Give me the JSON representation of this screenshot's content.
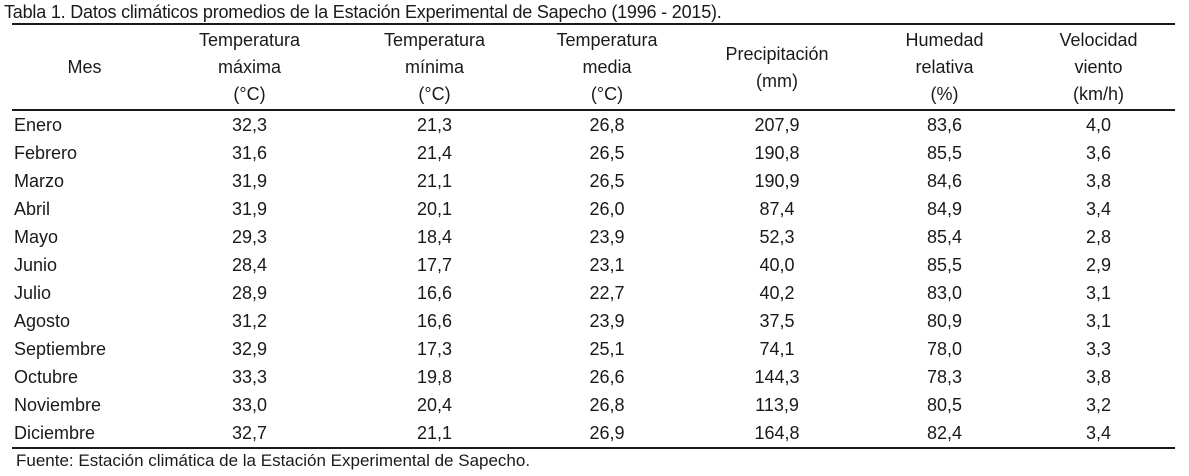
{
  "caption": "Tabla 1. Datos climáticos promedios de la Estación Experimental de Sapecho (1996 - 2015).",
  "table": {
    "headers": [
      {
        "lines": [
          "Mes"
        ]
      },
      {
        "lines": [
          "Temperatura",
          "máxima",
          "(°C)"
        ]
      },
      {
        "lines": [
          "Temperatura",
          "mínima",
          "(°C)"
        ]
      },
      {
        "lines": [
          "Temperatura",
          "media",
          "(°C)"
        ]
      },
      {
        "lines": [
          "Precipitación",
          "(mm)"
        ]
      },
      {
        "lines": [
          "Humedad",
          "relativa",
          "(%)"
        ]
      },
      {
        "lines": [
          "Velocidad",
          "viento",
          "(km/h)"
        ]
      }
    ],
    "rows": [
      [
        "Enero",
        "32,3",
        "21,3",
        "26,8",
        "207,9",
        "83,6",
        "4,0"
      ],
      [
        "Febrero",
        "31,6",
        "21,4",
        "26,5",
        "190,8",
        "85,5",
        "3,6"
      ],
      [
        "Marzo",
        "31,9",
        "21,1",
        "26,5",
        "190,9",
        "84,6",
        "3,8"
      ],
      [
        "Abril",
        "31,9",
        "20,1",
        "26,0",
        "87,4",
        "84,9",
        "3,4"
      ],
      [
        "Mayo",
        "29,3",
        "18,4",
        "23,9",
        "52,3",
        "85,4",
        "2,8"
      ],
      [
        "Junio",
        "28,4",
        "17,7",
        "23,1",
        "40,0",
        "85,5",
        "2,9"
      ],
      [
        "Julio",
        "28,9",
        "16,6",
        "22,7",
        "40,2",
        "83,0",
        "3,1"
      ],
      [
        "Agosto",
        "31,2",
        "16,6",
        "23,9",
        "37,5",
        "80,9",
        "3,1"
      ],
      [
        "Septiembre",
        "32,9",
        "17,3",
        "25,1",
        "74,1",
        "78,0",
        "3,3"
      ],
      [
        "Octubre",
        "33,3",
        "19,8",
        "26,6",
        "144,3",
        "78,3",
        "3,8"
      ],
      [
        "Noviembre",
        "33,0",
        "20,4",
        "26,8",
        "113,9",
        "80,5",
        "3,2"
      ],
      [
        "Diciembre",
        "32,7",
        "21,1",
        "26,9",
        "164,8",
        "82,4",
        "3,4"
      ]
    ]
  },
  "footer": "Fuente: Estación climática de la Estación Experimental de Sapecho."
}
